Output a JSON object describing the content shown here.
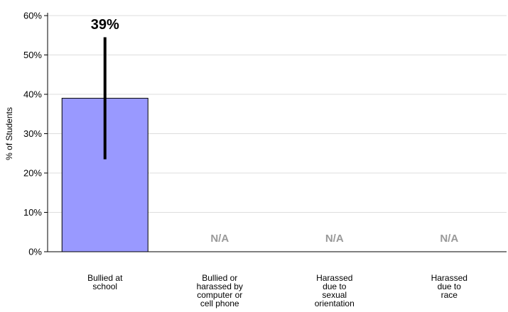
{
  "chart_data": {
    "type": "bar",
    "title": "",
    "xlabel": "",
    "ylabel": "% of Students",
    "ylim": [
      0,
      60
    ],
    "yticks": [
      "0%",
      "10%",
      "20%",
      "30%",
      "40%",
      "50%",
      "60%"
    ],
    "grid": true,
    "legend": "none",
    "categories": [
      [
        "Bullied at",
        "school"
      ],
      [
        "Bullied or",
        "harassed by",
        "computer or",
        "cell phone"
      ],
      [
        "Harassed",
        "due to",
        "sexual",
        "orientation"
      ],
      [
        "Harassed",
        "due to",
        "race"
      ]
    ],
    "values": [
      39,
      null,
      null,
      null
    ],
    "error_bars": [
      [
        23.5,
        54.5
      ],
      null,
      null,
      null
    ],
    "data_labels": [
      "39%",
      "N/A",
      "N/A",
      "N/A"
    ],
    "colors": {
      "bar": "#9999ff",
      "bar_border": "#000000",
      "error_bar": "#000000",
      "na_text": "#999999",
      "grid": "#dddddd"
    }
  }
}
